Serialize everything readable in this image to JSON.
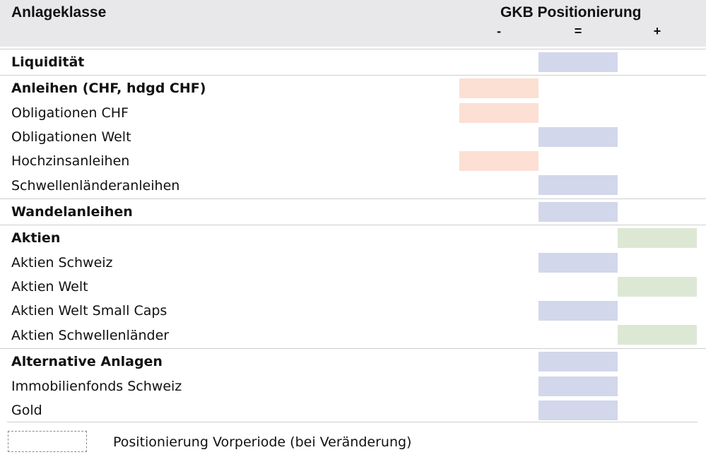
{
  "header": {
    "title": "Anlageklasse",
    "positioning_title": "GKB Positionierung",
    "columns": [
      "-",
      "=",
      "+"
    ]
  },
  "colors": {
    "minus": "#fbe0d3",
    "neutral": "#d3d7eb",
    "plus": "#dce8d4",
    "header_bg": "#e8e7e9"
  },
  "rows": [
    {
      "label": "Liquidität",
      "type": "group",
      "position": "="
    },
    {
      "label": "Anleihen (CHF, hdgd CHF)",
      "type": "group",
      "position": "-"
    },
    {
      "label": "Obligationen CHF",
      "type": "sub",
      "position": "-"
    },
    {
      "label": "Obligationen Welt",
      "type": "sub",
      "position": "="
    },
    {
      "label": "Hochzinsanleihen",
      "type": "sub",
      "position": "-"
    },
    {
      "label": "Schwellenländeranleihen",
      "type": "last",
      "position": "="
    },
    {
      "label": "Wandelanleihen",
      "type": "group",
      "position": "="
    },
    {
      "label": "Aktien",
      "type": "group",
      "position": "+"
    },
    {
      "label": "Aktien Schweiz",
      "type": "sub",
      "position": "="
    },
    {
      "label": "Aktien Welt",
      "type": "sub",
      "position": "+"
    },
    {
      "label": "Aktien Welt Small Caps",
      "type": "sub",
      "position": "="
    },
    {
      "label": "Aktien Schwellenländer",
      "type": "last",
      "position": "+"
    },
    {
      "label": "Alternative Anlagen",
      "type": "group",
      "position": "="
    },
    {
      "label": "Immobilienfonds Schweiz",
      "type": "sub",
      "position": "="
    },
    {
      "label": "Gold",
      "type": "sub",
      "position": "="
    }
  ],
  "legend": {
    "label": "Positionierung Vorperiode (bei Veränderung)"
  }
}
